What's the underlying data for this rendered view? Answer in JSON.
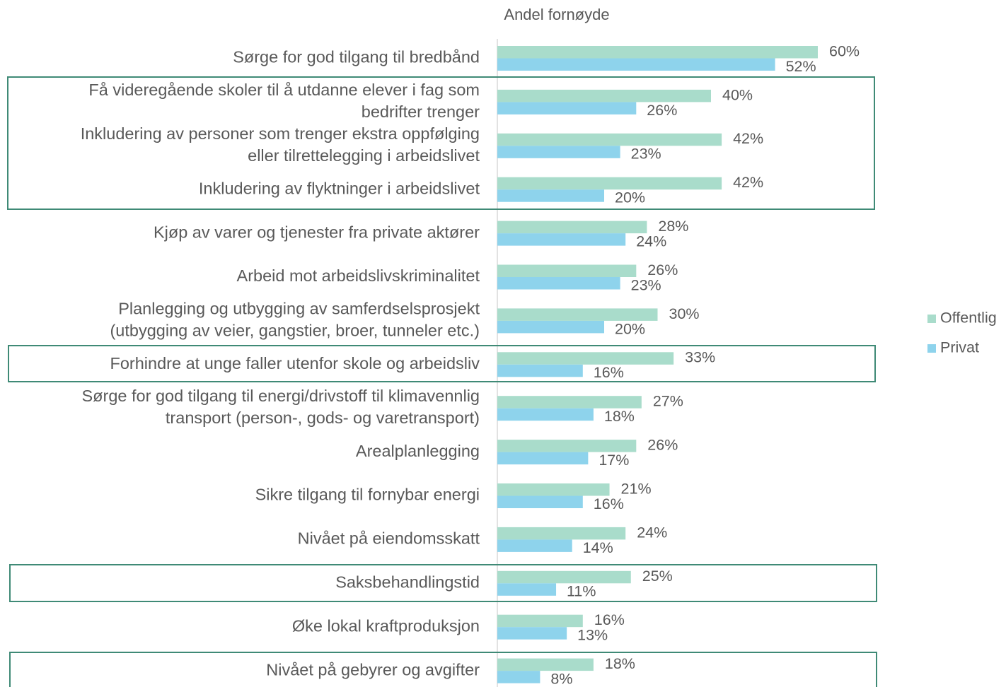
{
  "chart_data": {
    "type": "barh",
    "title": "Andel fornøyde",
    "categories": [
      "Sørge for god tilgang til bredbånd",
      "Få videregående skoler til å utdanne elever i fag som\nbedrifter trenger",
      "Inkludering av personer som trenger ekstra oppfølging\neller tilrettelegging i arbeidslivet",
      "Inkludering av flyktninger i arbeidslivet",
      "Kjøp av varer og tjenester fra private aktører",
      "Arbeid mot arbeidslivskriminalitet",
      "Planlegging og utbygging av samferdselsprosjekt\n(utbygging av veier, gangstier, broer, tunneler etc.)",
      "Forhindre at unge faller utenfor skole og arbeidsliv",
      "Sørge for god tilgang til energi/drivstoff til klimavennlig\ntransport (person-, gods- og varetransport)",
      "Arealplanlegging",
      "Sikre tilgang til fornybar energi",
      "Nivået på eiendomsskatt",
      "Saksbehandlingstid",
      "Øke lokal kraftproduksjon",
      "Nivået på gebyrer og avgifter"
    ],
    "series": [
      {
        "name": "Offentlig",
        "color": "#a9dccb",
        "values": [
          60,
          40,
          42,
          42,
          28,
          26,
          30,
          33,
          27,
          26,
          21,
          24,
          25,
          16,
          18
        ],
        "value_labels": [
          "60%",
          "40%",
          "42%",
          "42%",
          "28%",
          "26%",
          "30%",
          "33%",
          "27%",
          "26%",
          "21%",
          "24%",
          "25%",
          "16%",
          "18%"
        ]
      },
      {
        "name": "Privat",
        "color": "#8ed3ec",
        "values": [
          52,
          26,
          23,
          20,
          24,
          23,
          20,
          16,
          18,
          17,
          16,
          14,
          11,
          13,
          8
        ],
        "value_labels": [
          "52%",
          "26%",
          "23%",
          "20%",
          "24%",
          "23%",
          "20%",
          "16%",
          "18%",
          "17%",
          "16%",
          "14%",
          "11%",
          "13%",
          "8%"
        ]
      }
    ],
    "xlim": [
      0,
      100
    ],
    "legend": "right"
  }
}
